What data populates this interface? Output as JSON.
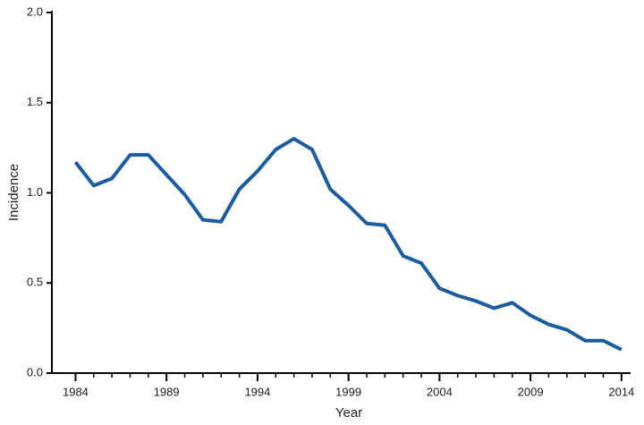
{
  "chart_data": {
    "type": "line",
    "x_label": "Year",
    "y_label": "Incidence",
    "x": [
      1984,
      1985,
      1986,
      1987,
      1988,
      1989,
      1990,
      1991,
      1992,
      1993,
      1994,
      1995,
      1996,
      1997,
      1998,
      1999,
      2000,
      2001,
      2002,
      2003,
      2004,
      2005,
      2006,
      2007,
      2008,
      2009,
      2010,
      2011,
      2012,
      2013,
      2014
    ],
    "series": [
      {
        "color": "#1b5c9e",
        "values": [
          1.17,
          1.04,
          1.08,
          1.21,
          1.21,
          1.1,
          0.99,
          0.85,
          0.84,
          1.02,
          1.12,
          1.24,
          1.3,
          1.24,
          1.02,
          0.93,
          0.83,
          0.82,
          0.65,
          0.61,
          0.47,
          0.43,
          0.4,
          0.36,
          0.39,
          0.32,
          0.27,
          0.24,
          0.18,
          0.18,
          0.13
        ]
      }
    ],
    "xlim": [
      1982.7,
      2014.5
    ],
    "xticks": [
      1984,
      1989,
      1994,
      1999,
      2004,
      2009,
      2014
    ],
    "ylim": [
      0,
      2.0
    ],
    "yticks": [
      {
        "value": 0,
        "label": "0.0"
      },
      0.5,
      {
        "value": 1,
        "label": "1.0"
      },
      1.5,
      {
        "value": 2,
        "label": "2.0"
      }
    ]
  }
}
